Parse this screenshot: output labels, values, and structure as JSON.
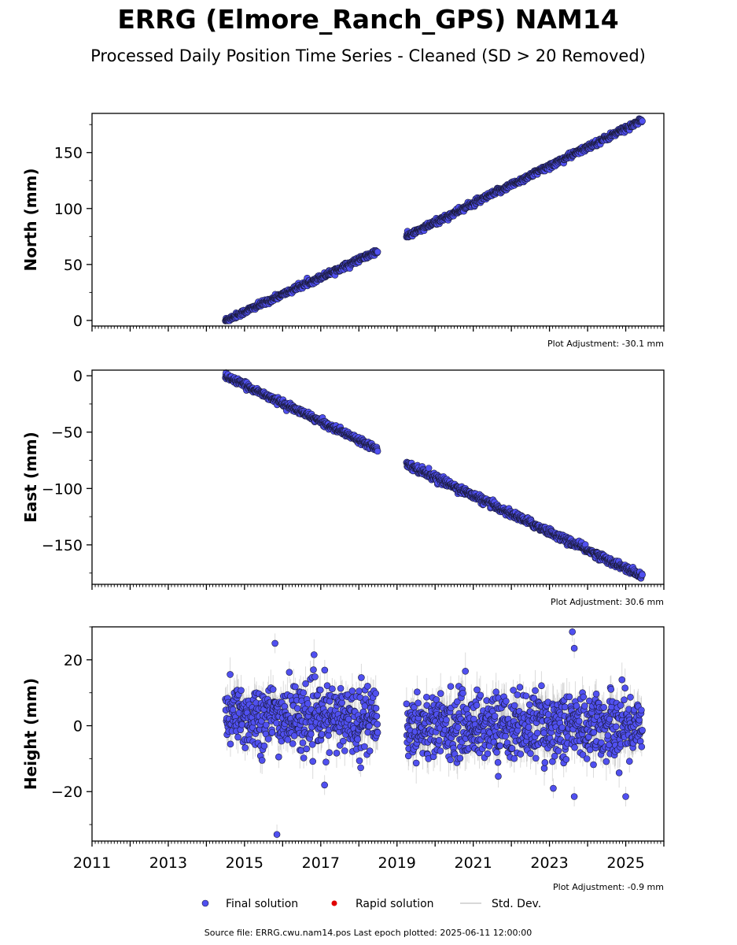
{
  "header": {
    "title": "ERRG (Elmore_Ranch_GPS) NAM14",
    "subtitle": "Processed Daily Position Time Series - Cleaned (SD > 20 Removed)"
  },
  "chart_data": [
    {
      "type": "scatter",
      "ylabel": "North (mm)",
      "ylim": [
        -5,
        185
      ],
      "yticks": [
        0,
        50,
        100,
        150
      ],
      "xlim": [
        2011,
        2026
      ],
      "adjustment": "Plot Adjustment: -30.1 mm",
      "segments": [
        {
          "x_start": 2014.5,
          "x_end": 2018.5,
          "y_start": 0,
          "y_end": 62,
          "scatter": 1.2,
          "sd": 1.0
        },
        {
          "x_start": 2019.25,
          "x_end": 2025.44,
          "y_start": 75,
          "y_end": 179,
          "scatter": 1.3,
          "sd": 1.0
        }
      ],
      "series": [
        {
          "name": "Final solution",
          "values": []
        }
      ]
    },
    {
      "type": "scatter",
      "ylabel": "East (mm)",
      "ylim": [
        -185,
        5
      ],
      "yticks": [
        0,
        -50,
        -100,
        -150
      ],
      "xlim": [
        2011,
        2026
      ],
      "adjustment": "Plot Adjustment: 30.6 mm",
      "segments": [
        {
          "x_start": 2014.5,
          "x_end": 2018.5,
          "y_start": 0,
          "y_end": -65,
          "scatter": 1.3,
          "sd": 1.0
        },
        {
          "x_start": 2019.25,
          "x_end": 2025.44,
          "y_start": -78,
          "y_end": -178,
          "scatter": 1.6,
          "sd": 1.0
        }
      ],
      "series": [
        {
          "name": "Final solution",
          "values": []
        }
      ]
    },
    {
      "type": "scatter",
      "ylabel": "Height (mm)",
      "ylim": [
        -35,
        30
      ],
      "yticks": [
        20,
        0,
        -20
      ],
      "xlim": [
        2011,
        2026
      ],
      "xticks": [
        2011,
        2013,
        2015,
        2017,
        2019,
        2021,
        2023,
        2025
      ],
      "adjustment": "Plot Adjustment: -0.9 mm",
      "segments": [
        {
          "x_start": 2014.5,
          "x_end": 2018.5,
          "y_start": 3,
          "y_end": 2,
          "scatter": 5.0,
          "sd": 4.0
        },
        {
          "x_start": 2019.25,
          "x_end": 2025.44,
          "y_start": 0,
          "y_end": 0,
          "scatter": 5.0,
          "sd": 4.5
        }
      ],
      "outliers": [
        [
          2015.85,
          -33
        ],
        [
          2015.8,
          25
        ],
        [
          2023.6,
          28.5
        ],
        [
          2023.65,
          23.5
        ],
        [
          2023.65,
          -21.5
        ],
        [
          2025.0,
          -21.5
        ],
        [
          2017.1,
          -18
        ],
        [
          2023.1,
          -19
        ]
      ],
      "series": [
        {
          "name": "Final solution",
          "values": []
        }
      ]
    }
  ],
  "legend": {
    "final": "Final solution",
    "rapid": "Rapid solution",
    "std": "Std. Dev."
  },
  "colors": {
    "final_fill": "#5050f0",
    "final_edge": "#1a1a3a",
    "rapid_fill": "#e00000",
    "std_line": "#999999"
  },
  "footer": {
    "source": "Source file: ERRG.cwu.nam14.pos  Last epoch plotted: 2025-06-11 12:00:00"
  }
}
